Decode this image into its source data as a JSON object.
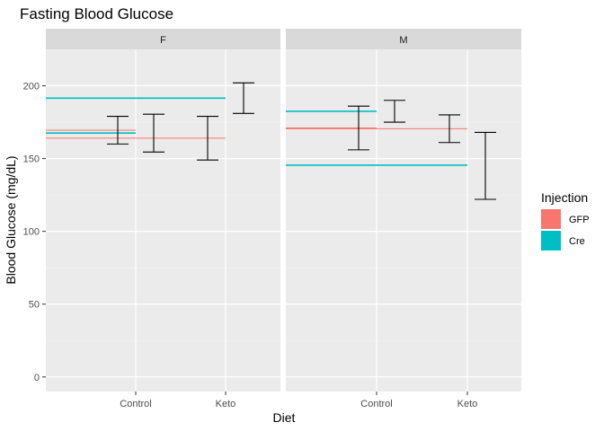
{
  "chart_data": {
    "type": "errorbar",
    "title": "Fasting Blood Glucose",
    "xlabel": "Diet",
    "ylabel": "Blood Glucose (mg/dL)",
    "ylim": [
      -10,
      225
    ],
    "yticks": [
      0,
      50,
      100,
      150,
      200
    ],
    "categories": [
      "Control",
      "Keto"
    ],
    "facets": [
      "F",
      "M"
    ],
    "legend": {
      "title": "Injection",
      "position": "right",
      "entries": [
        {
          "label": "GFP",
          "color": "#F8766D"
        },
        {
          "label": "Cre",
          "color": "#00BFC4"
        }
      ]
    },
    "grid": true,
    "panels": [
      {
        "facet": "F",
        "mean_lines": [
          {
            "injection": "GFP",
            "diet": "Control",
            "y": 169.5
          },
          {
            "injection": "Cre",
            "diet": "Control",
            "y": 167.5
          },
          {
            "injection": "Cre",
            "diet": "Keto",
            "y": 191.5
          },
          {
            "injection": "GFP",
            "diet": "Keto",
            "y": 164
          }
        ],
        "error_bars": [
          {
            "diet": "Control",
            "injection": "GFP",
            "ymin": 160,
            "ymax": 179
          },
          {
            "diet": "Control",
            "injection": "Cre",
            "ymin": 154.5,
            "ymax": 180.5
          },
          {
            "diet": "Keto",
            "injection": "GFP",
            "ymin": 149,
            "ymax": 179
          },
          {
            "diet": "Keto",
            "injection": "Cre",
            "ymin": 181,
            "ymax": 202
          }
        ]
      },
      {
        "facet": "M",
        "mean_lines": [
          {
            "injection": "Cre",
            "diet": "Control",
            "y": 182.5
          },
          {
            "injection": "GFP",
            "diet": "Control",
            "y": 171
          },
          {
            "injection": "GFP",
            "diet": "Keto",
            "y": 170.5
          },
          {
            "injection": "Cre",
            "diet": "Keto",
            "y": 145.5
          }
        ],
        "error_bars": [
          {
            "diet": "Control",
            "injection": "GFP",
            "ymin": 156,
            "ymax": 186
          },
          {
            "diet": "Control",
            "injection": "Cre",
            "ymin": 175,
            "ymax": 190
          },
          {
            "diet": "Keto",
            "injection": "GFP",
            "ymin": 161,
            "ymax": 180
          },
          {
            "diet": "Keto",
            "injection": "Cre",
            "ymin": 122,
            "ymax": 168
          }
        ]
      }
    ]
  }
}
